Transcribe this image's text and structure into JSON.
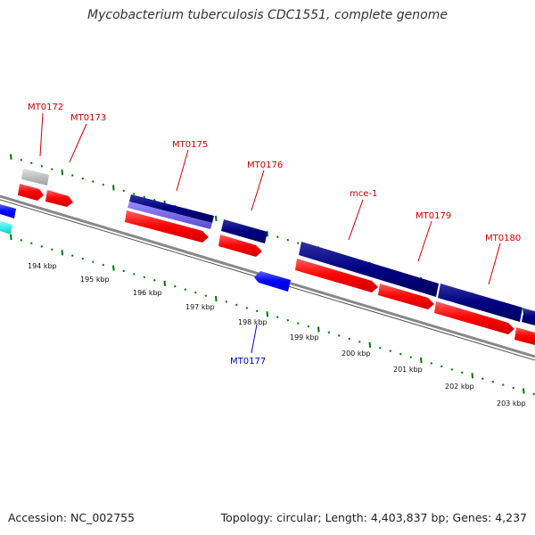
{
  "title": "Mycobacterium tuberculosis CDC1551, complete genome",
  "footer": {
    "accession": "Accession: NC_002755",
    "topology": "Topology: circular; Length: 4,403,837 bp; Genes: 4,237"
  },
  "colors": {
    "forward_gene": "#ff0000",
    "reverse_gene": "#0000ff",
    "cds_dark": "#000080",
    "cds_light": "#6a5acd",
    "other_feature": "#00ffff",
    "grey_feature": "#c0c0c0",
    "backbone": "#808080",
    "tick": "#007700",
    "label_forward": "#cc0000",
    "label_reverse": "#0000cc"
  },
  "scale": {
    "unit": "kbp",
    "labels": [
      "194 kbp",
      "195 kbp",
      "196 kbp",
      "197 kbp",
      "198 kbp",
      "199 kbp",
      "200 kbp",
      "201 kbp",
      "202 kbp",
      "203 kbp"
    ]
  },
  "gene_labels": {
    "mt0172": "MT0172",
    "mt0173": "MT0173",
    "mt0175": "MT0175",
    "mt0176": "MT0176",
    "mce1": "mce-1",
    "mt0179": "MT0179",
    "mt0180": "MT0180",
    "mt0177": "MT0177"
  }
}
